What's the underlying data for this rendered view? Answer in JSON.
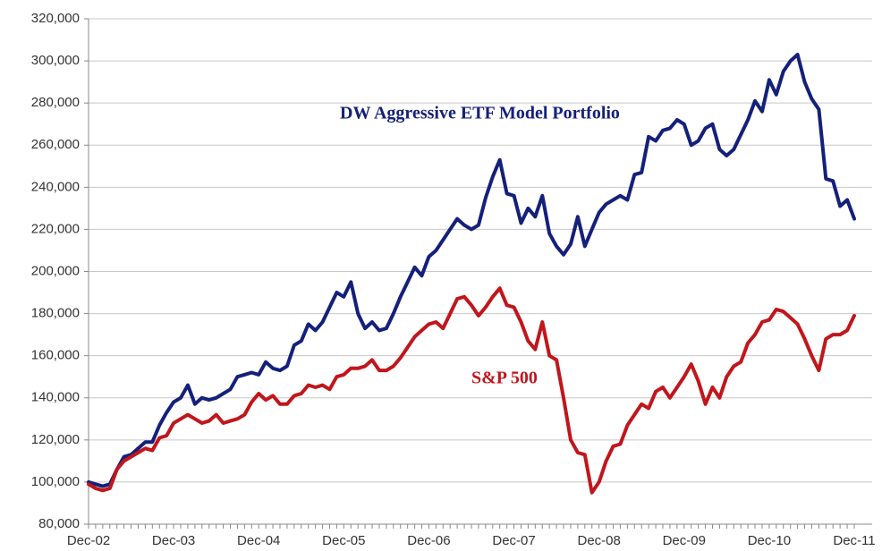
{
  "chart_data": {
    "type": "line",
    "categories": [
      "Dec-02",
      null,
      null,
      null,
      null,
      null,
      null,
      null,
      null,
      null,
      null,
      null,
      "Dec-03",
      null,
      null,
      null,
      null,
      null,
      null,
      null,
      null,
      null,
      null,
      null,
      "Dec-04",
      null,
      null,
      null,
      null,
      null,
      null,
      null,
      null,
      null,
      null,
      null,
      "Dec-05",
      null,
      null,
      null,
      null,
      null,
      null,
      null,
      null,
      null,
      null,
      null,
      "Dec-06",
      null,
      null,
      null,
      null,
      null,
      null,
      null,
      null,
      null,
      null,
      null,
      "Dec-07",
      null,
      null,
      null,
      null,
      null,
      null,
      null,
      null,
      null,
      null,
      null,
      "Dec-08",
      null,
      null,
      null,
      null,
      null,
      null,
      null,
      null,
      null,
      null,
      null,
      "Dec-09",
      null,
      null,
      null,
      null,
      null,
      null,
      null,
      null,
      null,
      null,
      null,
      "Dec-10",
      null,
      null,
      null,
      null,
      null,
      null,
      null,
      null,
      null,
      null,
      null,
      "Dec-11"
    ],
    "series": [
      {
        "name": "DW Aggressive ETF Model Portfolio",
        "color": "#14207a",
        "values": [
          100000,
          99000,
          98000,
          99000,
          106000,
          112000,
          113000,
          116000,
          119000,
          119000,
          127000,
          133000,
          138000,
          140000,
          146000,
          137000,
          140000,
          139000,
          140000,
          142000,
          144000,
          150000,
          151000,
          152000,
          151000,
          157000,
          154000,
          153000,
          155000,
          165000,
          167000,
          175000,
          172000,
          176000,
          183000,
          190000,
          188000,
          195000,
          180000,
          173000,
          176000,
          172000,
          173000,
          180000,
          188000,
          195000,
          202000,
          198000,
          207000,
          210000,
          215000,
          220000,
          225000,
          222000,
          220000,
          222000,
          235000,
          245000,
          253000,
          237000,
          236000,
          223000,
          230000,
          226000,
          236000,
          218000,
          212000,
          208000,
          213000,
          226000,
          212000,
          220000,
          228000,
          232000,
          234000,
          236000,
          234000,
          246000,
          247000,
          264000,
          262000,
          267000,
          268000,
          272000,
          270000,
          260000,
          262000,
          268000,
          270000,
          258000,
          255000,
          258000,
          265000,
          272000,
          281000,
          276000,
          291000,
          284000,
          295000,
          300000,
          303000,
          290000,
          282000,
          277000,
          244000,
          243000,
          231000,
          234000,
          225000
        ]
      },
      {
        "name": "S&P 500",
        "color": "#c0161c",
        "values": [
          99000,
          97000,
          96000,
          97000,
          106000,
          110000,
          112000,
          114000,
          116000,
          115000,
          121000,
          122000,
          128000,
          130000,
          132000,
          130000,
          128000,
          129000,
          132000,
          128000,
          129000,
          130000,
          132000,
          138000,
          142000,
          139000,
          141000,
          137000,
          137000,
          141000,
          142000,
          146000,
          145000,
          146000,
          144000,
          150000,
          151000,
          154000,
          154000,
          155000,
          158000,
          153000,
          153000,
          155000,
          159000,
          164000,
          169000,
          172000,
          175000,
          176000,
          173000,
          180000,
          187000,
          188000,
          184000,
          179000,
          183000,
          188000,
          192000,
          184000,
          183000,
          176000,
          167000,
          163000,
          176000,
          160000,
          158000,
          140000,
          120000,
          114000,
          113000,
          95000,
          100000,
          110000,
          117000,
          118000,
          127000,
          132000,
          137000,
          135000,
          143000,
          145000,
          140000,
          145000,
          150000,
          156000,
          148000,
          137000,
          145000,
          140000,
          150000,
          155000,
          157000,
          166000,
          170000,
          176000,
          177000,
          182000,
          181000,
          178000,
          175000,
          168000,
          160000,
          153000,
          168000,
          170000,
          170000,
          172000,
          179000
        ]
      }
    ],
    "ylim": [
      80000,
      320000
    ],
    "yticks": [
      {
        "value": 80000,
        "label": "80,000"
      },
      {
        "value": 100000,
        "label": "100,000"
      },
      {
        "value": 120000,
        "label": "120,000"
      },
      {
        "value": 140000,
        "label": "140,000"
      },
      {
        "value": 160000,
        "label": "160,000"
      },
      {
        "value": 180000,
        "label": "180,000"
      },
      {
        "value": 200000,
        "label": "200,000"
      },
      {
        "value": 220000,
        "label": "220,000"
      },
      {
        "value": 240000,
        "label": "240,000"
      },
      {
        "value": 260000,
        "label": "260,000"
      },
      {
        "value": 280000,
        "label": "280,000"
      },
      {
        "value": 300000,
        "label": "300,000"
      },
      {
        "value": 320000,
        "label": "320,000"
      }
    ],
    "grid": true
  }
}
